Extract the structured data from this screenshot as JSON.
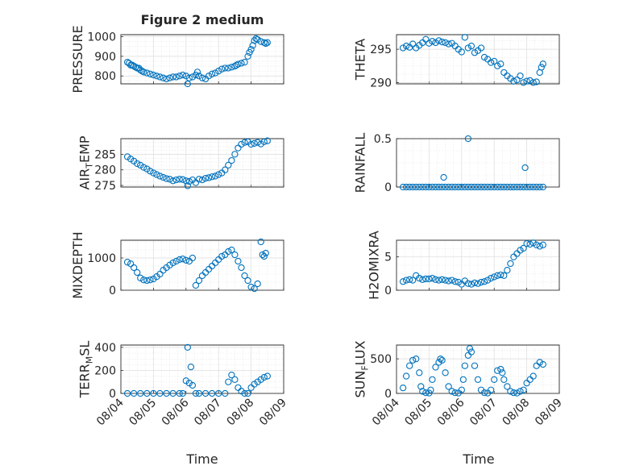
{
  "figure": {
    "title": "Figure 2 medium"
  },
  "chart_data": [
    {
      "type": "scatter",
      "ylabel": "PRESSURE",
      "ylim": [
        760,
        1010
      ],
      "yticks": [
        800,
        900,
        1000
      ],
      "xlim": [
        0,
        5
      ],
      "xticks": [
        "08/04",
        "08/05",
        "08/06",
        "08/07",
        "08/08",
        "08/09"
      ],
      "x": [
        0.2,
        0.25,
        0.3,
        0.35,
        0.4,
        0.45,
        0.5,
        0.55,
        0.6,
        0.65,
        0.7,
        0.8,
        0.9,
        1.0,
        1.1,
        1.2,
        1.3,
        1.4,
        1.5,
        1.6,
        1.7,
        1.8,
        1.9,
        2.0,
        2.05,
        2.1,
        2.2,
        2.3,
        2.35,
        2.4,
        2.5,
        2.6,
        2.7,
        2.8,
        2.9,
        3.0,
        3.1,
        3.2,
        3.3,
        3.4,
        3.5,
        3.55,
        3.6,
        3.7,
        3.8,
        3.9,
        3.95,
        4.0,
        4.05,
        4.1,
        4.15,
        4.2,
        4.3,
        4.4,
        4.45,
        4.5
      ],
      "y": [
        870,
        865,
        855,
        855,
        850,
        845,
        840,
        840,
        830,
        825,
        820,
        815,
        810,
        805,
        800,
        795,
        790,
        785,
        790,
        795,
        795,
        800,
        805,
        800,
        760,
        790,
        795,
        805,
        820,
        800,
        790,
        785,
        800,
        810,
        815,
        825,
        835,
        840,
        840,
        845,
        850,
        855,
        860,
        865,
        870,
        900,
        920,
        935,
        955,
        980,
        990,
        985,
        975,
        970,
        965,
        970
      ]
    },
    {
      "type": "scatter",
      "ylabel": "THETA",
      "ylim": [
        289.8,
        297.2
      ],
      "yticks": [
        290,
        295
      ],
      "xlim": [
        0,
        5
      ],
      "xticks": [
        "08/04",
        "08/05",
        "08/06",
        "08/07",
        "08/08",
        "08/09"
      ],
      "x": [
        0.2,
        0.3,
        0.4,
        0.5,
        0.6,
        0.7,
        0.8,
        0.9,
        1.0,
        1.1,
        1.2,
        1.3,
        1.4,
        1.5,
        1.6,
        1.7,
        1.8,
        1.9,
        2.0,
        2.1,
        2.2,
        2.3,
        2.4,
        2.5,
        2.6,
        2.7,
        2.8,
        2.9,
        3.0,
        3.1,
        3.2,
        3.3,
        3.4,
        3.5,
        3.6,
        3.7,
        3.8,
        3.9,
        4.0,
        4.1,
        4.2,
        4.3,
        4.4,
        4.45,
        4.5
      ],
      "y": [
        295.2,
        295.5,
        295.3,
        295.8,
        295.2,
        295.6,
        296.0,
        296.5,
        295.9,
        296.2,
        296.0,
        296.3,
        296.1,
        296.0,
        295.8,
        295.9,
        295.5,
        295.0,
        294.6,
        296.8,
        295.2,
        295.5,
        294.5,
        294.8,
        295.2,
        293.8,
        293.5,
        293.0,
        293.2,
        292.5,
        292.8,
        291.5,
        291.0,
        290.6,
        290.2,
        290.4,
        291.0,
        290.0,
        290.2,
        290.3,
        290.0,
        290.1,
        291.5,
        292.3,
        292.8
      ]
    },
    {
      "type": "scatter",
      "ylabel": "AIR_TEMP",
      "ylim": [
        274.5,
        290
      ],
      "yticks": [
        275,
        280,
        285
      ],
      "xlim": [
        0,
        5
      ],
      "xticks": [
        "08/04",
        "08/05",
        "08/06",
        "08/07",
        "08/08",
        "08/09"
      ],
      "x": [
        0.2,
        0.3,
        0.4,
        0.5,
        0.6,
        0.7,
        0.8,
        0.9,
        1.0,
        1.1,
        1.2,
        1.3,
        1.4,
        1.5,
        1.6,
        1.7,
        1.8,
        1.9,
        2.0,
        2.05,
        2.1,
        2.2,
        2.3,
        2.4,
        2.5,
        2.6,
        2.7,
        2.8,
        2.9,
        3.0,
        3.1,
        3.2,
        3.3,
        3.4,
        3.5,
        3.6,
        3.7,
        3.8,
        3.9,
        4.0,
        4.1,
        4.2,
        4.3,
        4.4,
        4.5
      ],
      "y": [
        284.2,
        283.5,
        282.8,
        282.0,
        281.5,
        280.8,
        280.3,
        279.6,
        279.0,
        278.5,
        278.0,
        277.6,
        277.2,
        277.0,
        276.5,
        276.8,
        277.0,
        276.9,
        276.5,
        274.9,
        276.3,
        276.8,
        275.9,
        277.0,
        276.8,
        277.3,
        277.5,
        277.8,
        278.0,
        278.5,
        279.0,
        280.0,
        281.5,
        283.0,
        285.0,
        287.0,
        288.2,
        288.8,
        289.0,
        288.2,
        288.5,
        288.8,
        288.3,
        289.0,
        289.3
      ]
    },
    {
      "type": "scatter",
      "ylabel": "RAINFALL",
      "ylim": [
        0,
        0.5
      ],
      "yticks": [
        0,
        0.5
      ],
      "xlim": [
        0,
        5
      ],
      "xticks": [
        "08/04",
        "08/05",
        "08/06",
        "08/07",
        "08/08",
        "08/09"
      ],
      "x": [
        0.2,
        0.3,
        0.4,
        0.5,
        0.6,
        0.7,
        0.8,
        0.9,
        1.0,
        1.1,
        1.2,
        1.3,
        1.4,
        1.5,
        1.6,
        1.7,
        1.8,
        1.9,
        2.0,
        2.1,
        2.2,
        2.3,
        2.4,
        2.5,
        2.6,
        2.7,
        2.8,
        2.9,
        3.0,
        3.1,
        3.2,
        3.3,
        3.4,
        3.5,
        3.6,
        3.7,
        3.8,
        3.9,
        4.0,
        4.1,
        4.2,
        4.3,
        4.4,
        4.5,
        1.45,
        2.2,
        3.95
      ],
      "y": [
        0,
        0,
        0,
        0,
        0,
        0,
        0,
        0,
        0,
        0,
        0,
        0,
        0,
        0,
        0,
        0,
        0,
        0,
        0,
        0,
        0,
        0,
        0,
        0,
        0,
        0,
        0,
        0,
        0,
        0,
        0,
        0,
        0,
        0,
        0,
        0,
        0,
        0,
        0,
        0,
        0,
        0,
        0,
        0,
        0.1,
        0.5,
        0.2
      ]
    },
    {
      "type": "scatter",
      "ylabel": "MIXDEPTH",
      "ylim": [
        0,
        1550
      ],
      "yticks": [
        0,
        1000
      ],
      "xlim": [
        0,
        5
      ],
      "xticks": [
        "08/04",
        "08/05",
        "08/06",
        "08/07",
        "08/08",
        "08/09"
      ],
      "x": [
        0.2,
        0.3,
        0.4,
        0.5,
        0.6,
        0.7,
        0.8,
        0.9,
        1.0,
        1.1,
        1.2,
        1.3,
        1.4,
        1.5,
        1.6,
        1.7,
        1.8,
        1.9,
        2.0,
        2.1,
        2.2,
        2.3,
        2.4,
        2.5,
        2.6,
        2.7,
        2.8,
        2.9,
        3.0,
        3.1,
        3.2,
        3.3,
        3.4,
        3.5,
        3.6,
        3.7,
        3.8,
        3.9,
        4.0,
        4.1,
        4.2,
        4.3,
        4.35,
        4.4,
        4.45
      ],
      "y": [
        870,
        820,
        700,
        550,
        380,
        320,
        300,
        320,
        350,
        420,
        500,
        620,
        700,
        780,
        850,
        900,
        950,
        970,
        930,
        900,
        1000,
        150,
        300,
        450,
        550,
        650,
        750,
        850,
        950,
        1050,
        1100,
        1200,
        1250,
        1100,
        900,
        700,
        450,
        300,
        100,
        50,
        200,
        1500,
        1100,
        1050,
        1150
      ]
    },
    {
      "type": "scatter",
      "ylabel": "H2OMIXRA",
      "ylim": [
        0,
        7.5
      ],
      "yticks": [
        0,
        5
      ],
      "xlim": [
        0,
        5
      ],
      "xticks": [
        "08/04",
        "08/05",
        "08/06",
        "08/07",
        "08/08",
        "08/09"
      ],
      "x": [
        0.2,
        0.3,
        0.4,
        0.5,
        0.6,
        0.7,
        0.8,
        0.9,
        1.0,
        1.1,
        1.2,
        1.3,
        1.4,
        1.5,
        1.6,
        1.7,
        1.8,
        1.9,
        2.0,
        2.1,
        2.2,
        2.3,
        2.4,
        2.5,
        2.6,
        2.7,
        2.8,
        2.9,
        3.0,
        3.1,
        3.2,
        3.3,
        3.4,
        3.5,
        3.6,
        3.7,
        3.8,
        3.9,
        4.0,
        4.1,
        4.2,
        4.3,
        4.4,
        4.5
      ],
      "y": [
        1.3,
        1.5,
        1.6,
        1.5,
        2.2,
        1.8,
        1.6,
        1.7,
        1.7,
        1.8,
        1.6,
        1.5,
        1.6,
        1.5,
        1.4,
        1.5,
        1.3,
        1.2,
        0.9,
        1.4,
        1.0,
        0.9,
        1.1,
        1.0,
        1.2,
        1.3,
        1.5,
        1.8,
        2.0,
        2.2,
        2.3,
        2.2,
        3.0,
        4.0,
        5.0,
        5.5,
        6.0,
        6.3,
        7.0,
        6.9,
        7.1,
        6.8,
        6.6,
        6.8
      ]
    },
    {
      "type": "scatter",
      "ylabel": "TERR_MSL",
      "ylim": [
        0,
        420
      ],
      "yticks": [
        0,
        200,
        400
      ],
      "xlim": [
        0,
        5
      ],
      "xticks": [
        "08/04",
        "08/05",
        "08/06",
        "08/07",
        "08/08",
        "08/09"
      ],
      "x": [
        0.2,
        0.4,
        0.6,
        0.8,
        1.0,
        1.2,
        1.4,
        1.6,
        1.8,
        1.9,
        2.0,
        2.05,
        2.1,
        2.15,
        2.2,
        2.3,
        2.4,
        2.6,
        2.8,
        3.0,
        3.2,
        3.3,
        3.4,
        3.5,
        3.6,
        3.7,
        3.8,
        3.9,
        4.0,
        4.1,
        4.2,
        4.3,
        4.4,
        4.5
      ],
      "y": [
        0,
        0,
        0,
        0,
        0,
        0,
        0,
        0,
        0,
        0,
        110,
        400,
        90,
        230,
        70,
        0,
        0,
        0,
        0,
        0,
        0,
        100,
        160,
        120,
        50,
        20,
        0,
        0,
        50,
        80,
        100,
        120,
        140,
        150
      ]
    },
    {
      "type": "scatter",
      "ylabel": "SUN_FLUX",
      "ylim": [
        0,
        700
      ],
      "yticks": [
        0,
        500
      ],
      "xlim": [
        0,
        5
      ],
      "xticks": [
        "08/04",
        "08/05",
        "08/06",
        "08/07",
        "08/08",
        "08/09"
      ],
      "x": [
        0.2,
        0.3,
        0.4,
        0.5,
        0.6,
        0.7,
        0.75,
        0.8,
        0.9,
        1.0,
        1.05,
        1.1,
        1.2,
        1.3,
        1.35,
        1.4,
        1.5,
        1.6,
        1.7,
        1.8,
        1.9,
        2.0,
        2.05,
        2.1,
        2.2,
        2.25,
        2.3,
        2.4,
        2.5,
        2.6,
        2.7,
        2.8,
        2.9,
        3.0,
        3.1,
        3.2,
        3.25,
        3.3,
        3.4,
        3.5,
        3.6,
        3.7,
        3.8,
        3.9,
        4.0,
        4.1,
        4.2,
        4.3,
        4.4,
        4.5
      ],
      "y": [
        80,
        250,
        400,
        480,
        500,
        300,
        100,
        30,
        10,
        5,
        50,
        200,
        380,
        450,
        500,
        480,
        300,
        100,
        30,
        10,
        5,
        50,
        200,
        400,
        550,
        650,
        600,
        400,
        200,
        50,
        10,
        5,
        50,
        200,
        330,
        350,
        300,
        200,
        100,
        30,
        10,
        5,
        30,
        50,
        150,
        200,
        250,
        400,
        450,
        420
      ]
    }
  ],
  "axes_labels": {
    "xlabel_bottom_left": "Time",
    "xlabel_bottom_right": "Time"
  }
}
